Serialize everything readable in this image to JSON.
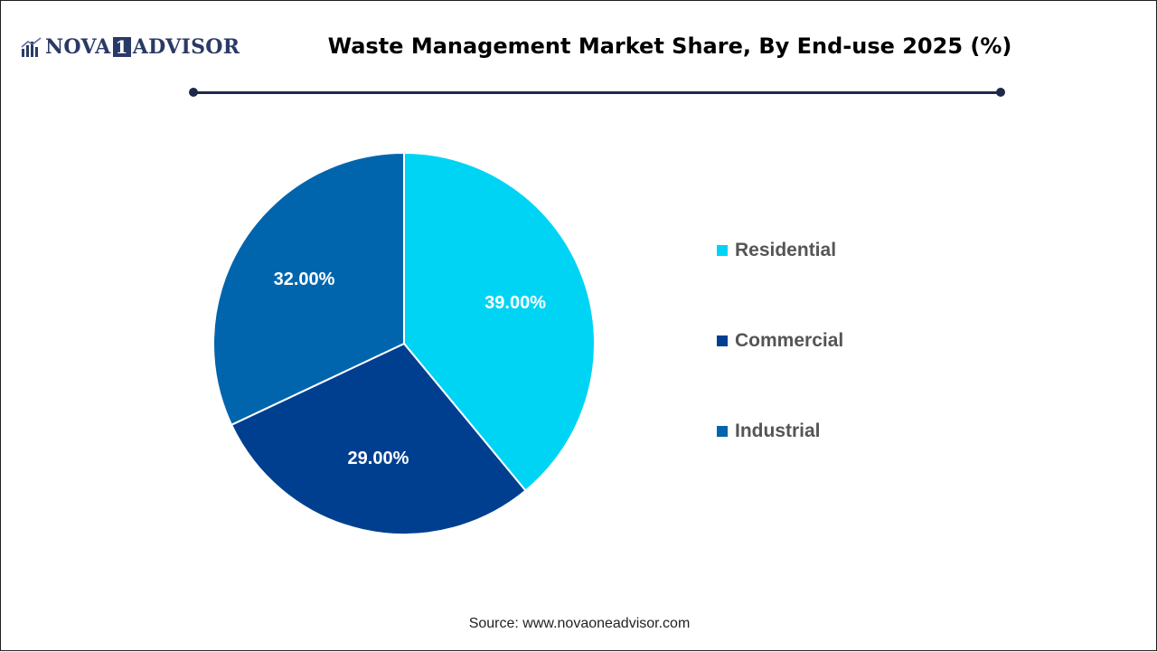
{
  "logo": {
    "text_left": "NOVA",
    "text_box": "1",
    "text_right": "ADVISOR",
    "icon": "bar-chart-icon"
  },
  "source": "Source: www.novaoneadvisor.com",
  "colors": {
    "residential": "#00d4f5",
    "commercial": "#003f8f",
    "industrial": "#0065ad",
    "rule": "#1e2a4a"
  },
  "chart_data": {
    "type": "pie",
    "title": "Waste Management Market Share, By End-use 2025 (%)",
    "categories": [
      "Residential",
      "Commercial",
      "Industrial"
    ],
    "values": [
      39.0,
      29.0,
      32.0
    ],
    "data_labels": [
      "39.00%",
      "29.00%",
      "32.00%"
    ],
    "start_angle_deg": 0,
    "direction": "clockwise",
    "legend_position": "right"
  }
}
